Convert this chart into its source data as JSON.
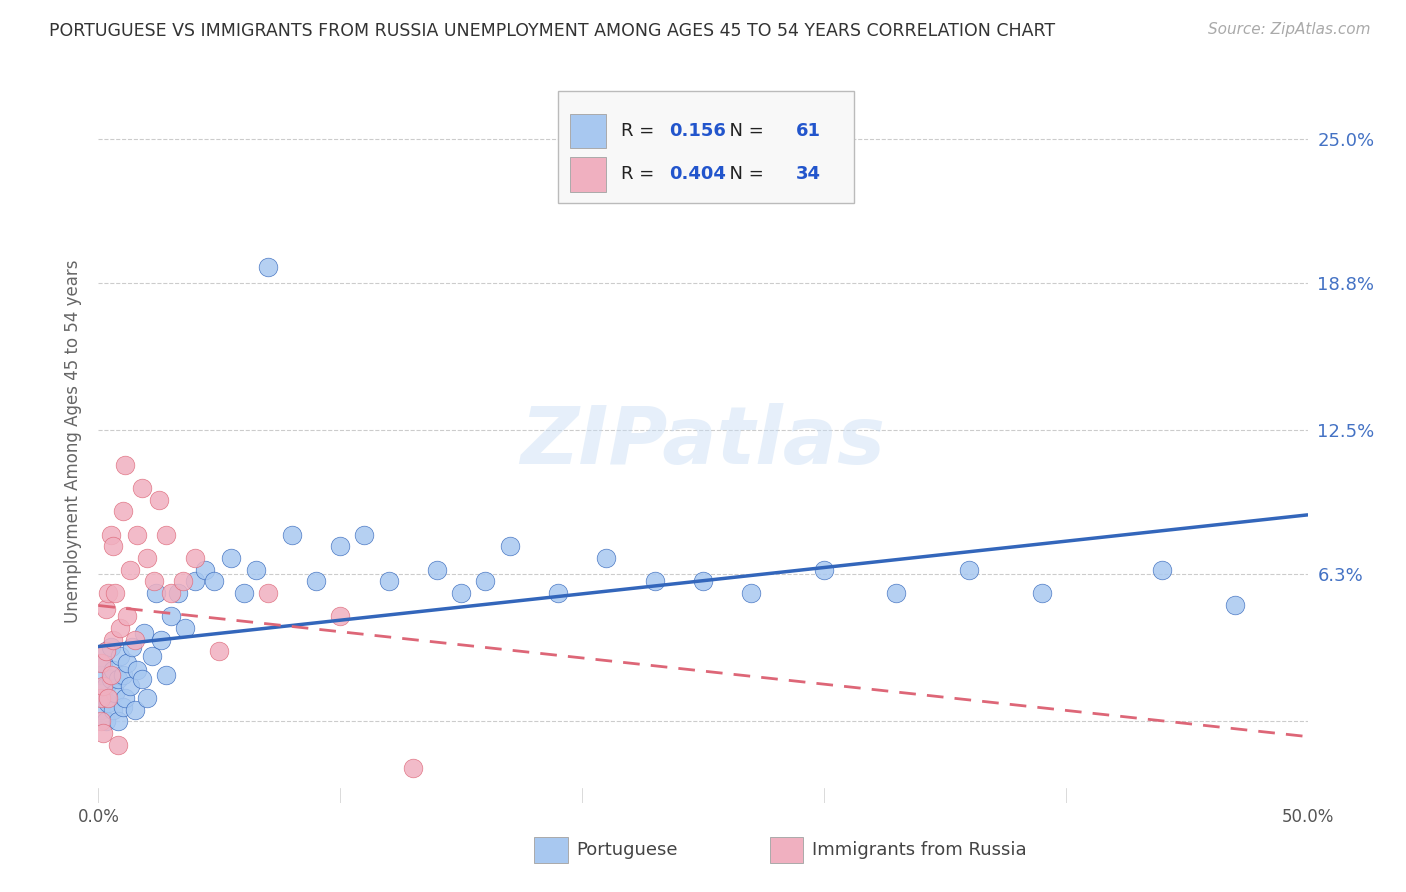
{
  "title": "PORTUGUESE VS IMMIGRANTS FROM RUSSIA UNEMPLOYMENT AMONG AGES 45 TO 54 YEARS CORRELATION CHART",
  "source": "Source: ZipAtlas.com",
  "ylabel": "Unemployment Among Ages 45 to 54 years",
  "xlim": [
    0.0,
    0.5
  ],
  "ylim": [
    -0.035,
    0.275
  ],
  "background_color": "#ffffff",
  "grid_color": "#cccccc",
  "watermark_text": "ZIPatlas",
  "portuguese_color": "#a8c8f0",
  "russia_color": "#f0b0c0",
  "portuguese_line_color": "#3366bb",
  "russia_line_color": "#dd6677",
  "R_portuguese": 0.156,
  "N_portuguese": 61,
  "R_russia": 0.404,
  "N_russia": 34,
  "ytick_values": [
    0.0,
    0.063,
    0.125,
    0.188,
    0.25
  ],
  "ytick_labels": [
    "",
    "6.3%",
    "12.5%",
    "18.8%",
    "25.0%"
  ],
  "portuguese_x": [
    0.001,
    0.001,
    0.002,
    0.002,
    0.003,
    0.003,
    0.003,
    0.004,
    0.005,
    0.005,
    0.006,
    0.006,
    0.007,
    0.008,
    0.008,
    0.009,
    0.01,
    0.01,
    0.011,
    0.012,
    0.013,
    0.014,
    0.015,
    0.016,
    0.018,
    0.019,
    0.02,
    0.022,
    0.024,
    0.026,
    0.028,
    0.03,
    0.033,
    0.036,
    0.04,
    0.044,
    0.048,
    0.055,
    0.06,
    0.065,
    0.07,
    0.08,
    0.09,
    0.1,
    0.11,
    0.12,
    0.14,
    0.15,
    0.16,
    0.17,
    0.19,
    0.21,
    0.23,
    0.25,
    0.27,
    0.3,
    0.33,
    0.36,
    0.39,
    0.44,
    0.47
  ],
  "portuguese_y": [
    0.005,
    0.02,
    0.01,
    0.025,
    0.0,
    0.015,
    0.03,
    0.008,
    0.018,
    0.032,
    0.005,
    0.022,
    0.012,
    0.0,
    0.018,
    0.028,
    0.006,
    0.02,
    0.01,
    0.025,
    0.015,
    0.032,
    0.005,
    0.022,
    0.018,
    0.038,
    0.01,
    0.028,
    0.055,
    0.035,
    0.02,
    0.045,
    0.055,
    0.04,
    0.06,
    0.065,
    0.06,
    0.07,
    0.055,
    0.065,
    0.195,
    0.08,
    0.06,
    0.075,
    0.08,
    0.06,
    0.065,
    0.055,
    0.06,
    0.075,
    0.055,
    0.07,
    0.06,
    0.06,
    0.055,
    0.065,
    0.055,
    0.065,
    0.055,
    0.065,
    0.05
  ],
  "russia_x": [
    0.001,
    0.001,
    0.001,
    0.002,
    0.002,
    0.003,
    0.003,
    0.004,
    0.004,
    0.005,
    0.005,
    0.006,
    0.006,
    0.007,
    0.008,
    0.009,
    0.01,
    0.011,
    0.012,
    0.013,
    0.015,
    0.016,
    0.018,
    0.02,
    0.023,
    0.025,
    0.028,
    0.03,
    0.035,
    0.04,
    0.05,
    0.07,
    0.1,
    0.13
  ],
  "russia_y": [
    0.0,
    0.01,
    0.025,
    -0.005,
    0.015,
    0.03,
    0.048,
    0.01,
    0.055,
    0.02,
    0.08,
    0.035,
    0.075,
    0.055,
    -0.01,
    0.04,
    0.09,
    0.11,
    0.045,
    0.065,
    0.035,
    0.08,
    0.1,
    0.07,
    0.06,
    0.095,
    0.08,
    0.055,
    0.06,
    0.07,
    0.03,
    0.055,
    0.045,
    -0.02
  ]
}
